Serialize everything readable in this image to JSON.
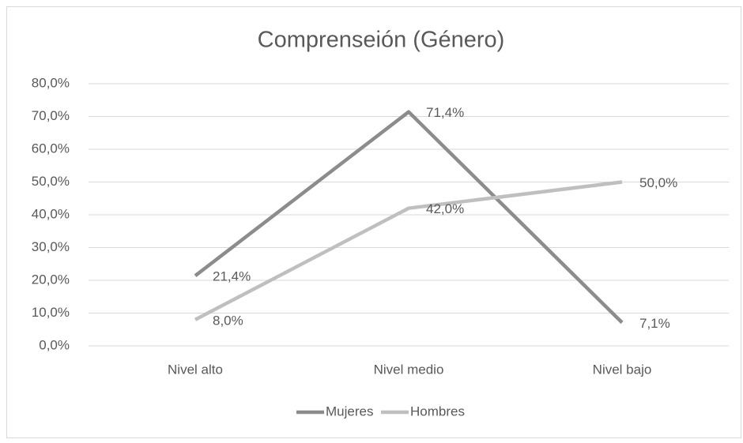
{
  "chart_data": {
    "type": "line",
    "title": "Comprenseión (Género)",
    "categories": [
      "Nivel alto",
      "Nivel medio",
      "Nivel bajo"
    ],
    "series": [
      {
        "name": "Mujeres",
        "color": "#8c8c8c",
        "values": [
          21.4,
          71.4,
          7.1
        ],
        "value_labels": [
          "21,4%",
          "71,4%",
          "7,1%"
        ]
      },
      {
        "name": "Hombres",
        "color": "#bfbfbf",
        "values": [
          8.0,
          42.0,
          50.0
        ],
        "value_labels": [
          "8,0%",
          "42,0%",
          "50,0%"
        ]
      }
    ],
    "ylim": [
      0,
      80
    ],
    "yticks": [
      {
        "value": 0,
        "label": "0,0%"
      },
      {
        "value": 10,
        "label": "10,0%"
      },
      {
        "value": 20,
        "label": "20,0%"
      },
      {
        "value": 30,
        "label": "30,0%"
      },
      {
        "value": 40,
        "label": "40,0%"
      },
      {
        "value": 50,
        "label": "50,0%"
      },
      {
        "value": 60,
        "label": "60,0%"
      },
      {
        "value": 70,
        "label": "70,0%"
      },
      {
        "value": 80,
        "label": "80,0%"
      }
    ],
    "grid": true,
    "legend": "bottom"
  }
}
